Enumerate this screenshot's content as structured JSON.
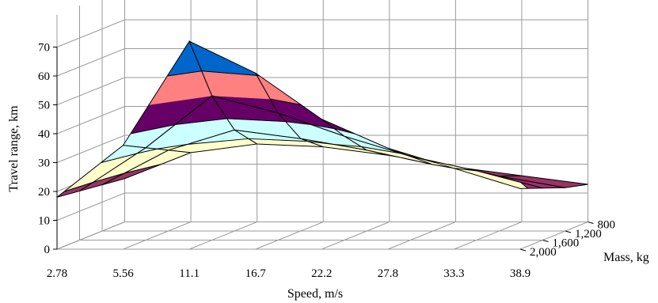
{
  "chart_data": {
    "type": "surface3d",
    "title": "",
    "xlabel": "Speed, m/s",
    "ylabel": "Travel range, km",
    "zlabel": "Mass, kg",
    "x_ticks": [
      "2.78",
      "5.56",
      "11.1",
      "16.7",
      "22.2",
      "27.8",
      "33.3",
      "38.9"
    ],
    "y_ticks": [
      "0",
      "10",
      "20",
      "30",
      "40",
      "50",
      "60",
      "70"
    ],
    "z_ticks": [
      "800",
      "1,200",
      "1,600",
      "2,000"
    ],
    "ylim": [
      0,
      70
    ],
    "grid": true,
    "band_colors": [
      "#9999ff",
      "#993366",
      "#ffffcc",
      "#ccffff",
      "#660066",
      "#ff8080",
      "#0066cc"
    ],
    "series": [
      {
        "mass": 2000,
        "x": [
          2.78,
          5.56,
          11.1,
          16.7,
          22.2,
          27.8,
          33.3,
          38.9
        ],
        "values": [
          15,
          24,
          27,
          26,
          23,
          19,
          16,
          13
        ]
      },
      {
        "mass": 1600,
        "x": [
          2.78,
          5.56,
          11.1,
          16.7,
          22.2,
          27.8,
          33.3,
          38.9
        ],
        "values": [
          16,
          28,
          35,
          32,
          28,
          23,
          19,
          15
        ]
      },
      {
        "mass": 1200,
        "x": [
          2.78,
          5.56,
          11.1,
          16.7,
          22.2,
          27.8,
          33.3,
          38.9
        ],
        "values": [
          17,
          32,
          50,
          44,
          36,
          29,
          24,
          18
        ]
      },
      {
        "mass": 800,
        "x": [
          2.78,
          5.56,
          11.1,
          16.7,
          22.2,
          27.8,
          33.3,
          38.9
        ],
        "values": [
          18,
          36,
          72,
          61,
          45,
          35,
          28,
          21
        ]
      }
    ]
  }
}
